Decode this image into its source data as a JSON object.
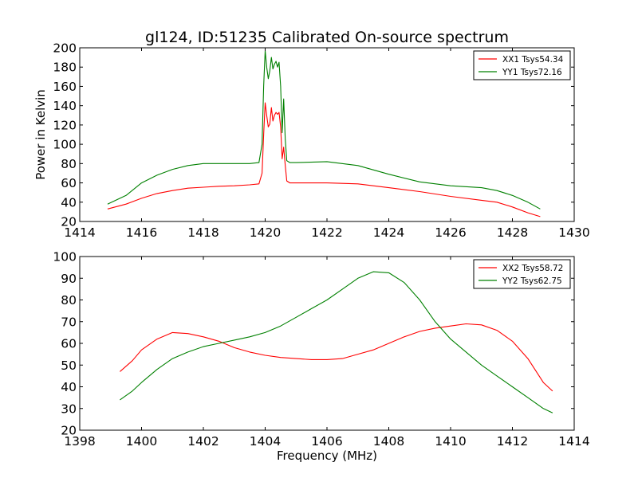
{
  "figure": {
    "title": "gl124, ID:51235 Calibrated On-source spectrum",
    "ylabel": "Power in Kelvin",
    "xlabel": "Frequency (MHz)"
  },
  "chart_data": [
    {
      "type": "line",
      "title": "gl124, ID:51235 Calibrated On-source spectrum",
      "xlabel": "",
      "ylabel": "Power in Kelvin",
      "xlim": [
        1414,
        1430
      ],
      "ylim": [
        20,
        200
      ],
      "xticks": [
        1414,
        1416,
        1418,
        1420,
        1422,
        1424,
        1426,
        1428,
        1430
      ],
      "yticks": [
        20,
        40,
        60,
        80,
        100,
        120,
        140,
        160,
        180,
        200
      ],
      "grid": false,
      "legend": "top-right",
      "series": [
        {
          "name": "XX1 Tsys54.34",
          "color": "#ff0000",
          "points": [
            [
              1414.9,
              33
            ],
            [
              1415.5,
              38
            ],
            [
              1416,
              44
            ],
            [
              1416.5,
              49
            ],
            [
              1417,
              52
            ],
            [
              1417.5,
              54.5
            ],
            [
              1418,
              55.5
            ],
            [
              1418.5,
              56.5
            ],
            [
              1419,
              57
            ],
            [
              1419.5,
              58
            ],
            [
              1419.8,
              59
            ],
            [
              1419.9,
              70
            ],
            [
              1419.95,
              110
            ],
            [
              1420.0,
              143
            ],
            [
              1420.05,
              130
            ],
            [
              1420.1,
              118
            ],
            [
              1420.15,
              121
            ],
            [
              1420.2,
              138
            ],
            [
              1420.25,
              124
            ],
            [
              1420.3,
              130
            ],
            [
              1420.35,
              133
            ],
            [
              1420.4,
              131
            ],
            [
              1420.45,
              133
            ],
            [
              1420.5,
              118
            ],
            [
              1420.55,
              85
            ],
            [
              1420.6,
              97
            ],
            [
              1420.65,
              78
            ],
            [
              1420.7,
              62
            ],
            [
              1420.8,
              60
            ],
            [
              1421,
              60
            ],
            [
              1422,
              60
            ],
            [
              1423,
              59
            ],
            [
              1424,
              55
            ],
            [
              1425,
              51
            ],
            [
              1426,
              46
            ],
            [
              1427,
              42
            ],
            [
              1427.5,
              40
            ],
            [
              1428,
              35
            ],
            [
              1428.5,
              29
            ],
            [
              1428.9,
              25
            ]
          ]
        },
        {
          "name": "YY1 Tsys72.16",
          "color": "#008000",
          "points": [
            [
              1414.9,
              38
            ],
            [
              1415.5,
              47
            ],
            [
              1416,
              60
            ],
            [
              1416.5,
              68
            ],
            [
              1417,
              74
            ],
            [
              1417.5,
              78
            ],
            [
              1418,
              80
            ],
            [
              1418.5,
              80
            ],
            [
              1419,
              80
            ],
            [
              1419.5,
              80
            ],
            [
              1419.8,
              81
            ],
            [
              1419.9,
              100
            ],
            [
              1419.95,
              160
            ],
            [
              1420.0,
              197
            ],
            [
              1420.05,
              180
            ],
            [
              1420.1,
              168
            ],
            [
              1420.15,
              176
            ],
            [
              1420.2,
              190
            ],
            [
              1420.25,
              178
            ],
            [
              1420.3,
              183
            ],
            [
              1420.35,
              186
            ],
            [
              1420.4,
              180
            ],
            [
              1420.45,
              185
            ],
            [
              1420.5,
              160
            ],
            [
              1420.55,
              112
            ],
            [
              1420.6,
              147
            ],
            [
              1420.65,
              105
            ],
            [
              1420.7,
              83
            ],
            [
              1420.8,
              81
            ],
            [
              1421,
              81
            ],
            [
              1422,
              82
            ],
            [
              1423,
              78
            ],
            [
              1424,
              69
            ],
            [
              1425,
              61
            ],
            [
              1426,
              57
            ],
            [
              1427,
              55
            ],
            [
              1427.5,
              52
            ],
            [
              1428,
              47
            ],
            [
              1428.5,
              40
            ],
            [
              1428.9,
              33
            ]
          ]
        }
      ]
    },
    {
      "type": "line",
      "title": "",
      "xlabel": "Frequency (MHz)",
      "ylabel": "",
      "xlim": [
        1398,
        1414
      ],
      "ylim": [
        20,
        100
      ],
      "xticks": [
        1398,
        1400,
        1402,
        1404,
        1406,
        1408,
        1410,
        1412,
        1414
      ],
      "yticks": [
        20,
        30,
        40,
        50,
        60,
        70,
        80,
        90,
        100
      ],
      "grid": false,
      "legend": "top-right",
      "series": [
        {
          "name": "XX2 Tsys58.72",
          "color": "#ff0000",
          "points": [
            [
              1399.3,
              47
            ],
            [
              1399.7,
              52
            ],
            [
              1400,
              57
            ],
            [
              1400.5,
              62
            ],
            [
              1401,
              65
            ],
            [
              1401.5,
              64.5
            ],
            [
              1402,
              63
            ],
            [
              1402.5,
              61
            ],
            [
              1403,
              58
            ],
            [
              1403.5,
              56
            ],
            [
              1404,
              54.5
            ],
            [
              1404.5,
              53.5
            ],
            [
              1405,
              53
            ],
            [
              1405.5,
              52.5
            ],
            [
              1406,
              52.5
            ],
            [
              1406.5,
              53
            ],
            [
              1407,
              55
            ],
            [
              1407.5,
              57
            ],
            [
              1408,
              60
            ],
            [
              1408.5,
              63
            ],
            [
              1409,
              65.5
            ],
            [
              1409.5,
              67
            ],
            [
              1410,
              68
            ],
            [
              1410.5,
              69
            ],
            [
              1411,
              68.5
            ],
            [
              1411.5,
              66
            ],
            [
              1412,
              61
            ],
            [
              1412.5,
              53
            ],
            [
              1413,
              42
            ],
            [
              1413.3,
              38
            ]
          ]
        },
        {
          "name": "YY2 Tsys62.75",
          "color": "#008000",
          "points": [
            [
              1399.3,
              34
            ],
            [
              1399.7,
              38
            ],
            [
              1400,
              42
            ],
            [
              1400.5,
              48
            ],
            [
              1401,
              53
            ],
            [
              1401.5,
              56
            ],
            [
              1402,
              58.5
            ],
            [
              1402.5,
              60
            ],
            [
              1403,
              61.5
            ],
            [
              1403.5,
              63
            ],
            [
              1404,
              65
            ],
            [
              1404.5,
              68
            ],
            [
              1405,
              72
            ],
            [
              1405.5,
              76
            ],
            [
              1406,
              80
            ],
            [
              1406.5,
              85
            ],
            [
              1407,
              90
            ],
            [
              1407.5,
              93
            ],
            [
              1408,
              92.5
            ],
            [
              1408.5,
              88
            ],
            [
              1409,
              80
            ],
            [
              1409.5,
              70
            ],
            [
              1410,
              62
            ],
            [
              1410.5,
              56
            ],
            [
              1411,
              50
            ],
            [
              1411.5,
              45
            ],
            [
              1412,
              40
            ],
            [
              1412.5,
              35
            ],
            [
              1413,
              30
            ],
            [
              1413.3,
              28
            ]
          ]
        }
      ]
    }
  ]
}
